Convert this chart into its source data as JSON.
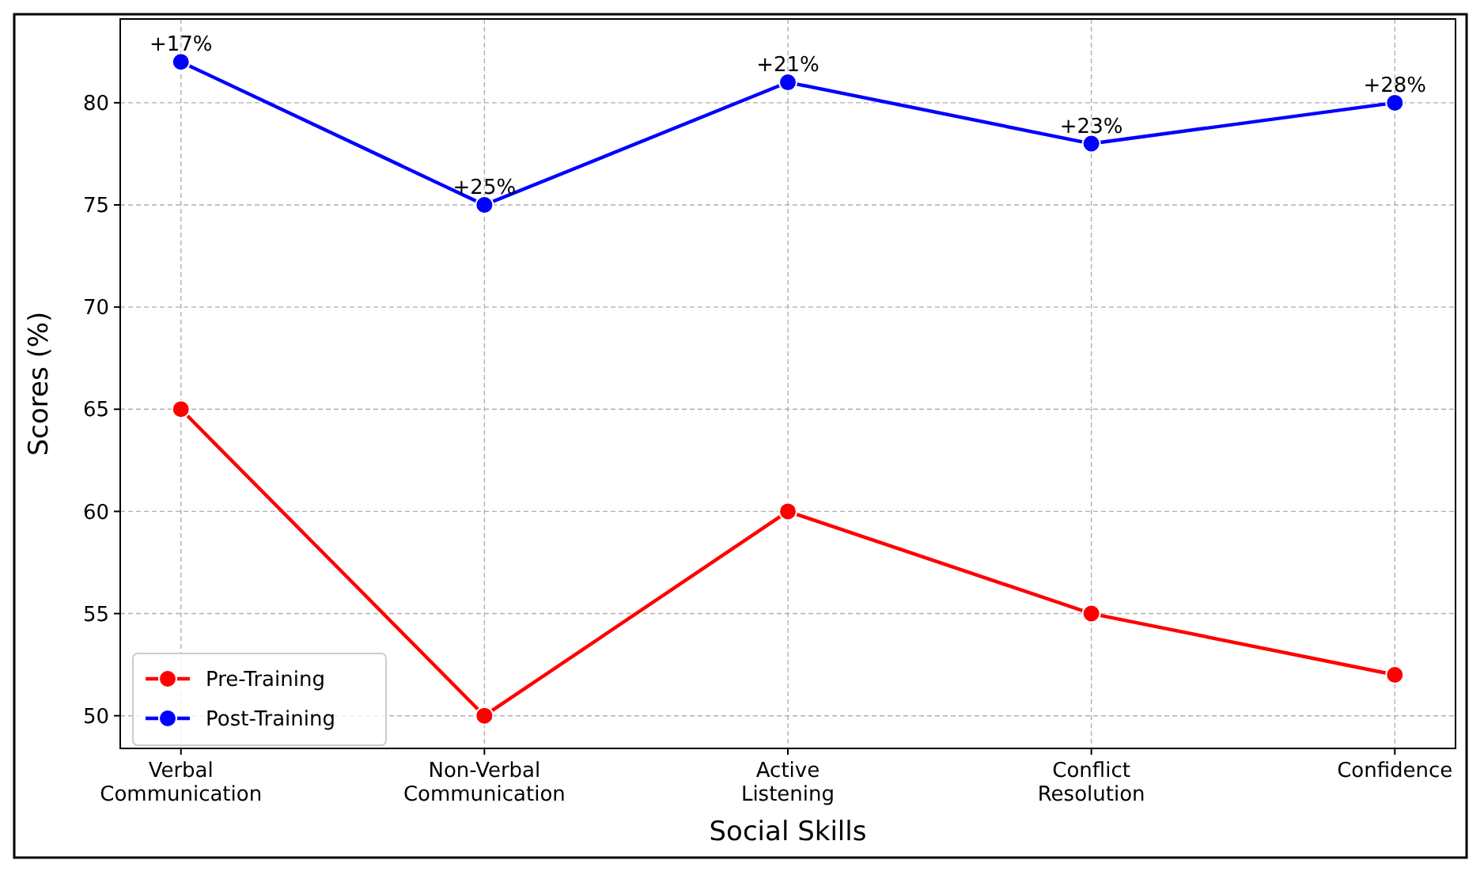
{
  "chart_data": {
    "type": "line",
    "xlabel": "Social Skills",
    "ylabel": "Scores (%)",
    "categories": [
      "Verbal Communication",
      "Non-Verbal Communication",
      "Active Listening",
      "Conflict Resolution",
      "Confidence"
    ],
    "series": [
      {
        "name": "Pre-Training",
        "color": "#ff0000",
        "values": [
          65,
          50,
          60,
          55,
          52
        ]
      },
      {
        "name": "Post-Training",
        "color": "#0000ff",
        "values": [
          82,
          75,
          81,
          78,
          80
        ]
      }
    ],
    "ylim": [
      48.4,
      84.1
    ],
    "yticks": [
      50,
      55,
      60,
      65,
      70,
      75,
      80
    ],
    "annotations": [
      {
        "text": "+17%",
        "x": "Verbal Communication",
        "y": 82
      },
      {
        "text": "+25%",
        "x": "Non-Verbal Communication",
        "y": 75
      },
      {
        "text": "+21%",
        "x": "Active Listening",
        "y": 81
      },
      {
        "text": "+23%",
        "x": "Conflict Resolution",
        "y": 78
      },
      {
        "text": "+28%",
        "x": "Confidence",
        "y": 80
      }
    ],
    "grid": true,
    "legend": "bottom left",
    "marker": "circle",
    "line_style": "solid"
  }
}
